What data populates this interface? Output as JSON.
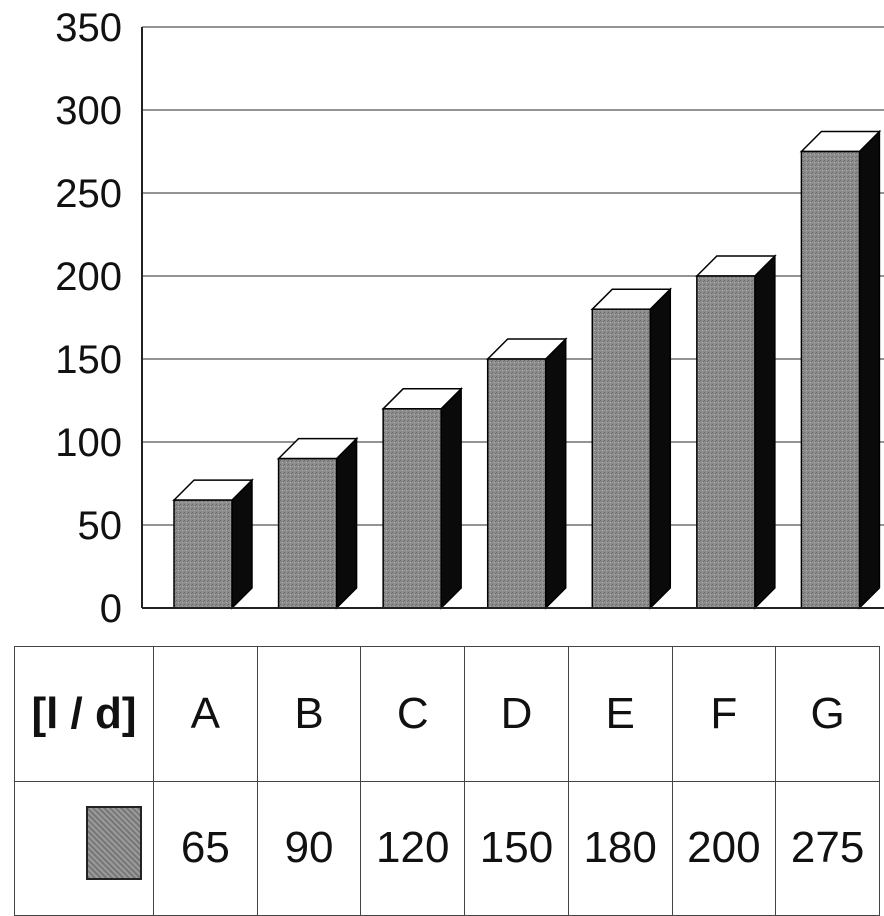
{
  "chart_data": {
    "type": "bar",
    "categories": [
      "A",
      "B",
      "C",
      "D",
      "E",
      "F",
      "G"
    ],
    "values": [
      65,
      90,
      120,
      150,
      180,
      200,
      275
    ],
    "ylim": [
      0,
      350
    ],
    "yticks": [
      "0",
      "50",
      "100",
      "150",
      "200",
      "250",
      "300",
      "350"
    ],
    "grid": true,
    "bar_color": "#8c8c8c",
    "bar_side_color": "#0a0a0a",
    "bar_top_color": "#ffffff"
  },
  "table": {
    "unit_label": "[l / d]",
    "headers": [
      "A",
      "B",
      "C",
      "D",
      "E",
      "F",
      "G"
    ],
    "values": [
      "65",
      "90",
      "120",
      "150",
      "180",
      "200",
      "275"
    ]
  }
}
